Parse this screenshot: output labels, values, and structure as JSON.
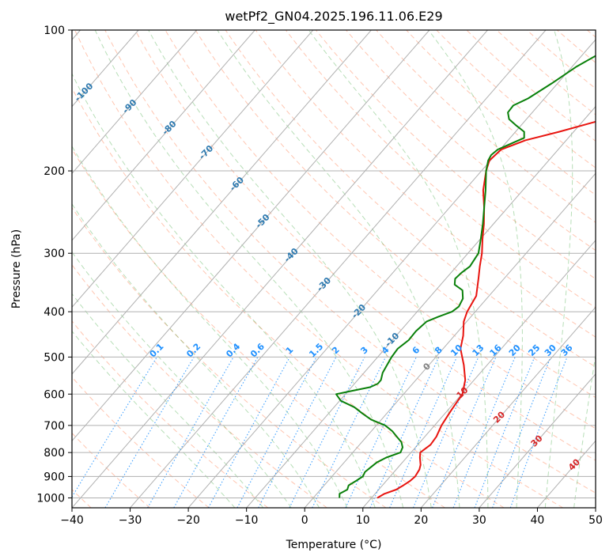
{
  "chart_data": {
    "type": "skew-t",
    "title": "wetPf2_GN04.2025.196.11.06.E29",
    "xlabel": "Temperature (°C)",
    "ylabel": "Pressure (hPa)",
    "xlim": [
      -40,
      50
    ],
    "ylim": [
      1050,
      100
    ],
    "x_ticks": [
      -40,
      -30,
      -20,
      -10,
      0,
      10,
      20,
      30,
      40,
      50
    ],
    "y_ticks": [
      100,
      200,
      300,
      400,
      500,
      600,
      700,
      800,
      900,
      1000
    ],
    "y_scale": "log",
    "grid": true,
    "series": [
      {
        "name": "",
        "color": "#e8140f",
        "points": [
          [
            1000,
            11.0
          ],
          [
            990,
            11.3
          ],
          [
            980,
            11.6
          ],
          [
            960,
            13.0
          ],
          [
            940,
            13.6
          ],
          [
            920,
            14.1
          ],
          [
            900,
            14.3
          ],
          [
            870,
            14.0
          ],
          [
            850,
            13.5
          ],
          [
            820,
            12.3
          ],
          [
            800,
            11.6
          ],
          [
            770,
            12.2
          ],
          [
            740,
            12.0
          ],
          [
            700,
            11.2
          ],
          [
            650,
            10.6
          ],
          [
            600,
            10.1
          ],
          [
            560,
            8.5
          ],
          [
            520,
            6.0
          ],
          [
            480,
            3.0
          ],
          [
            450,
            1.5
          ],
          [
            420,
            -0.5
          ],
          [
            400,
            -1.4
          ],
          [
            370,
            -2.2
          ],
          [
            340,
            -4.4
          ],
          [
            320,
            -6.0
          ],
          [
            300,
            -7.6
          ],
          [
            280,
            -9.6
          ],
          [
            260,
            -11.6
          ],
          [
            240,
            -14.0
          ],
          [
            220,
            -16.8
          ],
          [
            200,
            -19.2
          ],
          [
            190,
            -20.2
          ],
          [
            180,
            -19.8
          ],
          [
            172,
            -17.0
          ],
          [
            165,
            -12.5
          ],
          [
            155,
            -6.5
          ],
          [
            145,
            -1.5
          ],
          [
            130,
            6.0
          ],
          [
            115,
            13.5
          ],
          [
            108,
            17.5
          ],
          [
            100,
            22.0
          ]
        ]
      },
      {
        "name": "",
        "color": "#0a800a",
        "points": [
          [
            1000,
            4.5
          ],
          [
            980,
            3.9
          ],
          [
            960,
            4.6
          ],
          [
            940,
            4.2
          ],
          [
            920,
            4.8
          ],
          [
            900,
            5.3
          ],
          [
            880,
            5.0
          ],
          [
            860,
            5.3
          ],
          [
            840,
            5.6
          ],
          [
            820,
            6.5
          ],
          [
            800,
            8.2
          ],
          [
            780,
            7.8
          ],
          [
            760,
            6.8
          ],
          [
            740,
            5.2
          ],
          [
            720,
            3.6
          ],
          [
            700,
            1.5
          ],
          [
            680,
            -1.8
          ],
          [
            660,
            -4.2
          ],
          [
            640,
            -6.5
          ],
          [
            620,
            -9.8
          ],
          [
            600,
            -11.6
          ],
          [
            590,
            -9.2
          ],
          [
            580,
            -6.8
          ],
          [
            570,
            -6.0
          ],
          [
            560,
            -6.0
          ],
          [
            540,
            -6.8
          ],
          [
            520,
            -7.2
          ],
          [
            500,
            -7.6
          ],
          [
            480,
            -7.8
          ],
          [
            460,
            -7.2
          ],
          [
            440,
            -7.3
          ],
          [
            420,
            -6.9
          ],
          [
            410,
            -5.6
          ],
          [
            400,
            -4.0
          ],
          [
            390,
            -3.6
          ],
          [
            375,
            -4.1
          ],
          [
            360,
            -5.4
          ],
          [
            350,
            -7.6
          ],
          [
            340,
            -8.4
          ],
          [
            330,
            -8.2
          ],
          [
            320,
            -7.7
          ],
          [
            300,
            -8.2
          ],
          [
            280,
            -9.9
          ],
          [
            260,
            -11.8
          ],
          [
            240,
            -14.0
          ],
          [
            220,
            -16.4
          ],
          [
            200,
            -19.2
          ],
          [
            190,
            -20.4
          ],
          [
            185,
            -20.7
          ],
          [
            180,
            -20.4
          ],
          [
            175,
            -19.0
          ],
          [
            170,
            -17.6
          ],
          [
            165,
            -18.5
          ],
          [
            160,
            -20.8
          ],
          [
            155,
            -23.0
          ],
          [
            150,
            -24.2
          ],
          [
            145,
            -24.3
          ],
          [
            140,
            -22.8
          ],
          [
            130,
            -21.0
          ],
          [
            120,
            -19.3
          ],
          [
            110,
            -16.6
          ],
          [
            100,
            -13.2
          ]
        ]
      }
    ],
    "dry_adiabats_C": [
      -40,
      -30,
      -20,
      -10,
      0,
      10,
      20,
      30,
      40,
      50,
      60,
      70,
      80,
      90,
      100,
      110,
      120,
      130,
      140,
      150,
      160,
      170,
      180,
      190,
      200,
      210
    ],
    "moist_adiabats_C": [
      -15,
      -10,
      -5,
      0,
      5,
      10,
      15,
      20,
      25,
      30,
      35,
      40,
      45,
      50
    ],
    "mixing_ratios": [
      "0.1",
      "0.2",
      "0.4",
      "0.6",
      "1",
      "1.5",
      "2",
      "3",
      "4",
      "6",
      "8",
      "10",
      "13",
      "16",
      "20",
      "25",
      "30",
      "36"
    ],
    "isotherm_labels": [
      "-100",
      "-90",
      "-80",
      "-70",
      "-60",
      "-50",
      "-40",
      "-30",
      "-20",
      "-10",
      "0",
      "10",
      "20",
      "30",
      "40"
    ],
    "colors": {
      "temperature": "#e8140f",
      "dewpoint": "#0a800a",
      "isotherm_cold": "#2e7ab0",
      "isotherm_zero": "#808080",
      "isotherm_warm": "#d62728",
      "mixing_ratio": "#1e90ff",
      "dry_adiabat": "#ff7f50",
      "moist_adiabat": "#32a032",
      "grid": "#b0b0b0"
    }
  }
}
